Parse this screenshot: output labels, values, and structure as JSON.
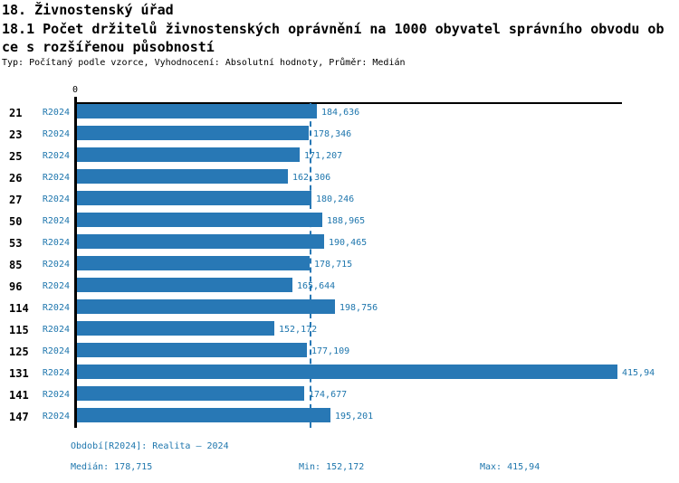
{
  "header": {
    "title": "18. Živnostenský úřad",
    "subtitle_full": "18.1 Počet držitelů živnostenských oprávnění na 1000 obyvatel správního obvodu obce s rozšířenou působností",
    "subtitle_line1": "18.1 Počet držitelů živnostenských oprávnění na 1000 obyvatel správního obvodu ob",
    "subtitle_line2": "ce s rozšířenou působností",
    "meta": "Typ: Počítaný podle vzorce, Vyhodnocení: Absolutní hodnoty, Průměr: Medián"
  },
  "chart_data": {
    "type": "bar",
    "orientation": "horizontal",
    "title": "18. Živnostenský úřad",
    "subtitle": "18.1 Počet držitelů živnostenských oprávnění na 1000 obyvatel správního obvodu obce s rozšířenou působností",
    "axis_zero_label": "0",
    "period_label": "R2024",
    "categories": [
      "21",
      "23",
      "25",
      "26",
      "27",
      "50",
      "53",
      "85",
      "96",
      "114",
      "115",
      "125",
      "131",
      "141",
      "147"
    ],
    "values": [
      184.636,
      178.346,
      171.207,
      162.306,
      180.246,
      188.965,
      190.465,
      178.715,
      165.644,
      198.756,
      152.172,
      177.109,
      415.94,
      174.677,
      195.201
    ],
    "value_labels": [
      "184,636",
      "178,346",
      "171,207",
      "162,306",
      "180,246",
      "188,965",
      "190,465",
      "178,715",
      "165,644",
      "198,756",
      "152,172",
      "177,109",
      "415,94",
      "174,677",
      "195,201"
    ],
    "xlim": [
      0,
      415.94
    ],
    "median": 178.715,
    "min": 152.172,
    "max": 415.94,
    "grid": "off",
    "median_line_style": "dashed",
    "bar_color": "#2878b5",
    "blue_text_color": "#1e76ad"
  },
  "footer": {
    "period": "Období[R2024]: Realita – 2024",
    "median": "Medián: 178,715",
    "min": "Min: 152,172",
    "max": "Max: 415,94"
  }
}
